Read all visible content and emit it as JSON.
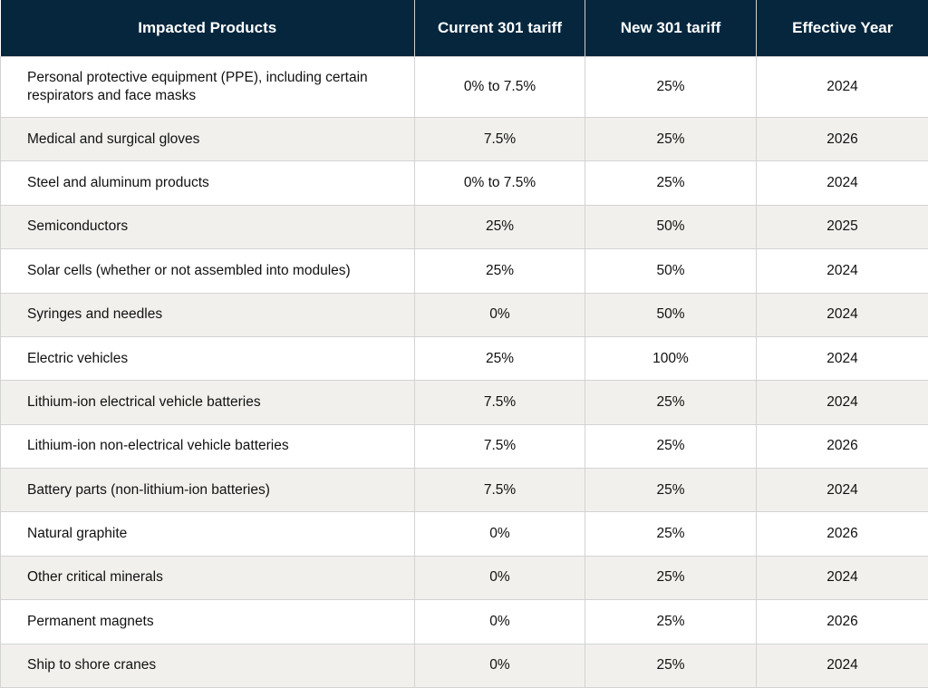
{
  "table": {
    "headers": [
      "Impacted Products",
      "Current 301 tariff",
      "New 301 tariff",
      "Effective Year"
    ],
    "rows": [
      {
        "product": "Personal protective equipment (PPE), including certain respirators and face masks",
        "current": "0% to 7.5%",
        "new": "25%",
        "year": "2024"
      },
      {
        "product": "Medical and surgical gloves",
        "current": "7.5%",
        "new": "25%",
        "year": "2026"
      },
      {
        "product": "Steel and aluminum products",
        "current": "0% to 7.5%",
        "new": "25%",
        "year": "2024"
      },
      {
        "product": "Semiconductors",
        "current": "25%",
        "new": "50%",
        "year": "2025"
      },
      {
        "product": "Solar cells (whether or not assembled into modules)",
        "current": "25%",
        "new": "50%",
        "year": "2024"
      },
      {
        "product": "Syringes and needles",
        "current": "0%",
        "new": "50%",
        "year": "2024"
      },
      {
        "product": "Electric vehicles",
        "current": "25%",
        "new": "100%",
        "year": "2024"
      },
      {
        "product": "Lithium-ion electrical vehicle batteries",
        "current": "7.5%",
        "new": "25%",
        "year": "2024"
      },
      {
        "product": "Lithium-ion non-electrical vehicle batteries",
        "current": "7.5%",
        "new": "25%",
        "year": "2026"
      },
      {
        "product": "Battery parts (non-lithium-ion batteries)",
        "current": "7.5%",
        "new": "25%",
        "year": "2024"
      },
      {
        "product": "Natural graphite",
        "current": "0%",
        "new": "25%",
        "year": "2026"
      },
      {
        "product": "Other critical minerals",
        "current": "0%",
        "new": "25%",
        "year": "2024"
      },
      {
        "product": "Permanent magnets",
        "current": "0%",
        "new": "25%",
        "year": "2026"
      },
      {
        "product": "Ship to shore cranes",
        "current": "0%",
        "new": "25%",
        "year": "2024"
      }
    ]
  },
  "colors": {
    "header_bg": "#05263d",
    "header_text": "#ffffff",
    "row_alt_bg": "#f1f0ec",
    "row_bg": "#ffffff",
    "grid": "#d3d3d3"
  }
}
